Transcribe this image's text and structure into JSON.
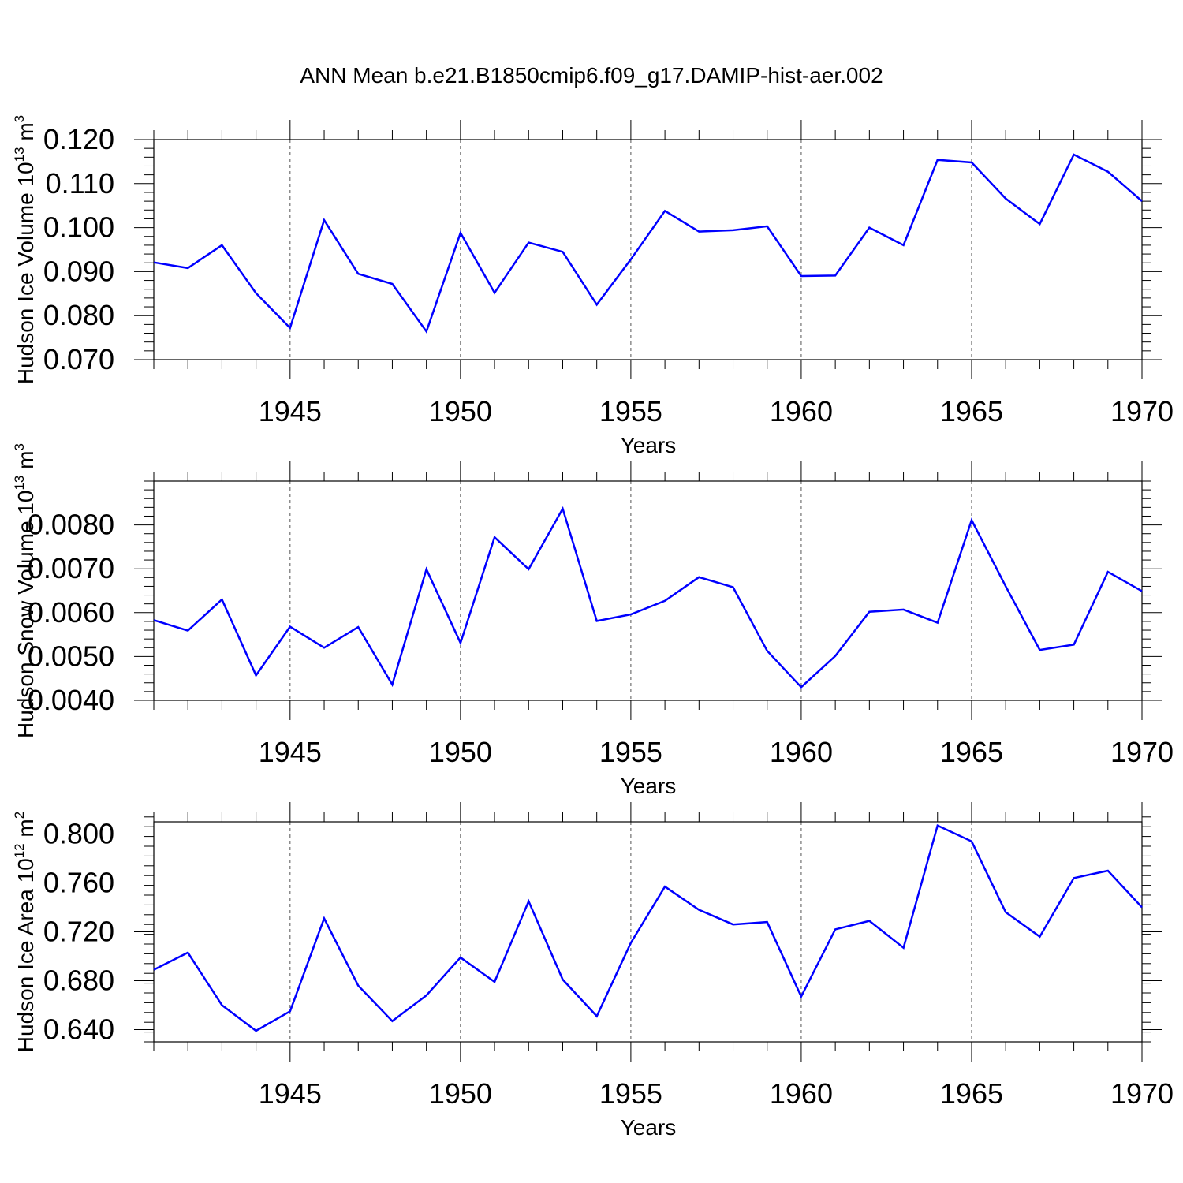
{
  "title": "ANN Mean b.e21.B1850cmip6.f09_g17.DAMIP-hist-aer.002",
  "colors": {
    "line": "#0000ff",
    "axis": "#000000",
    "grid": "#555555"
  },
  "chart_data": [
    {
      "type": "line",
      "ylabel": {
        "text": "Hudson Ice Volume 10",
        "exp": "13",
        "unit": " m",
        "unit_exp": "3"
      },
      "xlabel": "Years",
      "xlim": [
        1941,
        1970
      ],
      "ylim": [
        0.07,
        0.12
      ],
      "yticks": [
        0.07,
        0.08,
        0.09,
        0.1,
        0.11,
        0.12
      ],
      "ytick_labels": [
        "0.070",
        "0.080",
        "0.090",
        "0.100",
        "0.110",
        "0.120"
      ],
      "xticks": [
        1945,
        1950,
        1955,
        1960,
        1965,
        1970
      ],
      "xtick_labels": [
        "1945",
        "1950",
        "1955",
        "1960",
        "1965",
        "1970"
      ],
      "x": [
        1941,
        1942,
        1943,
        1944,
        1945,
        1946,
        1947,
        1948,
        1949,
        1950,
        1951,
        1952,
        1953,
        1954,
        1955,
        1956,
        1957,
        1958,
        1959,
        1960,
        1961,
        1962,
        1963,
        1964,
        1965,
        1966,
        1967,
        1968,
        1969,
        1970
      ],
      "series": [
        {
          "name": "Hudson Ice Volume",
          "values": [
            0.0921,
            0.0908,
            0.096,
            0.0851,
            0.0772,
            0.1017,
            0.0895,
            0.0872,
            0.0764,
            0.0988,
            0.0852,
            0.0966,
            0.0945,
            0.0825,
            0.0928,
            0.1038,
            0.0991,
            0.0994,
            0.1003,
            0.089,
            0.0891,
            0.1,
            0.096,
            0.1154,
            0.1148,
            0.1066,
            0.1008,
            0.1166,
            0.1127,
            0.106
          ]
        }
      ]
    },
    {
      "type": "line",
      "ylabel": {
        "text": "Hudson Snow Volume 10",
        "exp": "13",
        "unit": " m",
        "unit_exp": "3"
      },
      "xlabel": "Years",
      "xlim": [
        1941,
        1970
      ],
      "ylim": [
        0.004,
        0.009
      ],
      "yticks": [
        0.004,
        0.005,
        0.006,
        0.007,
        0.008
      ],
      "ytick_labels": [
        "0.0040",
        "0.0050",
        "0.0060",
        "0.0070",
        "0.0080"
      ],
      "xticks": [
        1945,
        1950,
        1955,
        1960,
        1965,
        1970
      ],
      "xtick_labels": [
        "1945",
        "1950",
        "1955",
        "1960",
        "1965",
        "1970"
      ],
      "x": [
        1941,
        1942,
        1943,
        1944,
        1945,
        1946,
        1947,
        1948,
        1949,
        1950,
        1951,
        1952,
        1953,
        1954,
        1955,
        1956,
        1957,
        1958,
        1959,
        1960,
        1961,
        1962,
        1963,
        1964,
        1965,
        1966,
        1967,
        1968,
        1969,
        1970
      ],
      "series": [
        {
          "name": "Hudson Snow Volume",
          "values": [
            0.00583,
            0.00559,
            0.0063,
            0.00457,
            0.00568,
            0.0052,
            0.00567,
            0.00436,
            0.00699,
            0.00531,
            0.00772,
            0.00699,
            0.00837,
            0.00581,
            0.00596,
            0.00627,
            0.00681,
            0.00658,
            0.00513,
            0.0043,
            0.00501,
            0.00602,
            0.00607,
            0.00577,
            0.00811,
            0.0066,
            0.00515,
            0.00527,
            0.00693,
            0.00649
          ]
        }
      ]
    },
    {
      "type": "line",
      "ylabel": {
        "text": "Hudson Ice Area 10",
        "exp": "12",
        "unit": " m",
        "unit_exp": "2"
      },
      "xlabel": "Years",
      "xlim": [
        1941,
        1970
      ],
      "ylim": [
        0.63,
        0.81
      ],
      "yticks": [
        0.64,
        0.68,
        0.72,
        0.76,
        0.8
      ],
      "ytick_labels": [
        "0.640",
        "0.680",
        "0.720",
        "0.760",
        "0.800"
      ],
      "xticks": [
        1945,
        1950,
        1955,
        1960,
        1965,
        1970
      ],
      "xtick_labels": [
        "1945",
        "1950",
        "1955",
        "1960",
        "1965",
        "1970"
      ],
      "x": [
        1941,
        1942,
        1943,
        1944,
        1945,
        1946,
        1947,
        1948,
        1949,
        1950,
        1951,
        1952,
        1953,
        1954,
        1955,
        1956,
        1957,
        1958,
        1959,
        1960,
        1961,
        1962,
        1963,
        1964,
        1965,
        1966,
        1967,
        1968,
        1969,
        1970
      ],
      "series": [
        {
          "name": "Hudson Ice Area",
          "values": [
            0.689,
            0.703,
            0.66,
            0.639,
            0.655,
            0.731,
            0.676,
            0.647,
            0.668,
            0.699,
            0.679,
            0.745,
            0.681,
            0.651,
            0.711,
            0.757,
            0.738,
            0.726,
            0.728,
            0.667,
            0.722,
            0.729,
            0.707,
            0.807,
            0.794,
            0.736,
            0.716,
            0.764,
            0.77,
            0.74
          ]
        }
      ]
    }
  ]
}
